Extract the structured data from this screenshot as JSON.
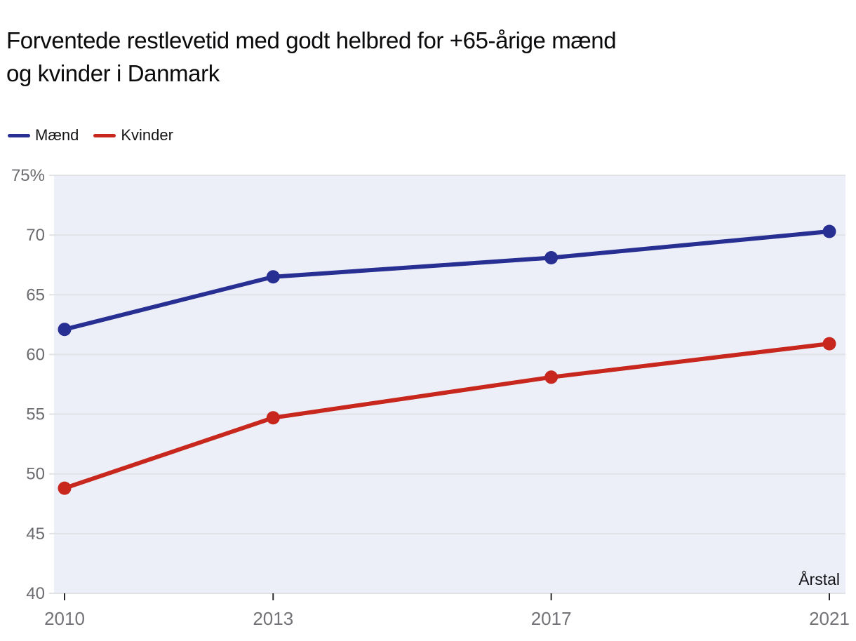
{
  "title_lines": [
    "Forventede restlevetid med godt helbred for +65-årige mænd",
    "og kvinder i Danmark"
  ],
  "legend": {
    "items": [
      {
        "label": "Mænd",
        "color": "#272f93"
      },
      {
        "label": "Kvinder",
        "color": "#c7271c"
      }
    ]
  },
  "chart_data": {
    "type": "line",
    "title": "Forventede restlevetid med godt helbred for +65-årige mænd og kvinder i Danmark",
    "x": [
      2010,
      2013,
      2017,
      2021
    ],
    "x_tick_labels": [
      "2010",
      "2013",
      "2017",
      "2021"
    ],
    "series": [
      {
        "name": "Mænd",
        "color": "#272f93",
        "values": [
          62.1,
          66.5,
          68.1,
          70.3
        ]
      },
      {
        "name": "Kvinder",
        "color": "#c7271c",
        "values": [
          48.8,
          54.7,
          58.1,
          60.9
        ]
      }
    ],
    "xlabel": "Årstal",
    "ylabel": "",
    "ylim": [
      40,
      75
    ],
    "yticks": [
      40,
      45,
      50,
      55,
      60,
      65,
      70,
      75
    ],
    "y_tick_labels": [
      "40",
      "45",
      "50",
      "55",
      "60",
      "65",
      "70",
      "75%"
    ],
    "grid": "horizontal",
    "legend_position": "top-left",
    "marker": "circle",
    "colors": {
      "plot_background": "#edeff8",
      "grid_line": "#e1e2e7",
      "x_tick_mark": "#2a2a2e",
      "y_tick_label": "#6c6c70",
      "x_tick_label": "#737377"
    }
  }
}
